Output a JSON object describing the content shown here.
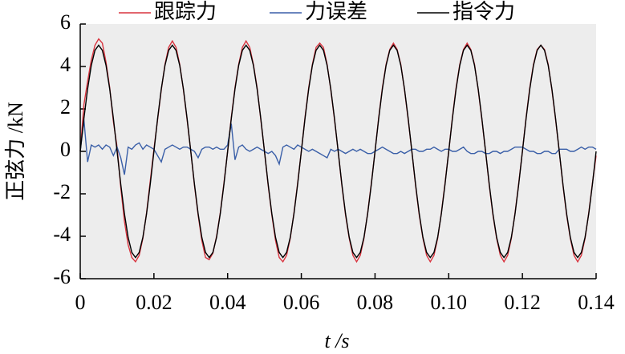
{
  "chart_data": {
    "type": "line",
    "xlabel": "t /s",
    "ylabel": "正弦力 /kN",
    "x": [
      0,
      0.001,
      0.002,
      0.003,
      0.004,
      0.005,
      0.006,
      0.007,
      0.008,
      0.009,
      0.01,
      0.011,
      0.012,
      0.013,
      0.014,
      0.015,
      0.016,
      0.017,
      0.018,
      0.019,
      0.02,
      0.021,
      0.022,
      0.023,
      0.024,
      0.025,
      0.026,
      0.027,
      0.028,
      0.029,
      0.03,
      0.031,
      0.032,
      0.033,
      0.034,
      0.035,
      0.036,
      0.037,
      0.038,
      0.039,
      0.04,
      0.041,
      0.042,
      0.043,
      0.044,
      0.045,
      0.046,
      0.047,
      0.048,
      0.049,
      0.05,
      0.051,
      0.052,
      0.053,
      0.054,
      0.055,
      0.056,
      0.057,
      0.058,
      0.059,
      0.06,
      0.061,
      0.062,
      0.063,
      0.064,
      0.065,
      0.066,
      0.067,
      0.068,
      0.069,
      0.07,
      0.071,
      0.072,
      0.073,
      0.074,
      0.075,
      0.076,
      0.077,
      0.078,
      0.079,
      0.08,
      0.081,
      0.082,
      0.083,
      0.084,
      0.085,
      0.086,
      0.087,
      0.088,
      0.089,
      0.09,
      0.091,
      0.092,
      0.093,
      0.094,
      0.095,
      0.096,
      0.097,
      0.098,
      0.099,
      0.1,
      0.101,
      0.102,
      0.103,
      0.104,
      0.105,
      0.106,
      0.107,
      0.108,
      0.109,
      0.11,
      0.111,
      0.112,
      0.113,
      0.114,
      0.115,
      0.116,
      0.117,
      0.118,
      0.119,
      0.12,
      0.121,
      0.122,
      0.123,
      0.124,
      0.125,
      0.126,
      0.127,
      0.128,
      0.129,
      0.13,
      0.131,
      0.132,
      0.133,
      0.134,
      0.135,
      0.136,
      0.137,
      0.138,
      0.139,
      0.14
    ],
    "series": [
      {
        "name": "跟踪力",
        "color": "#d9343f",
        "values": [
          0,
          2.2,
          3.3,
          4.3,
          5.0,
          5.3,
          5.1,
          4.2,
          3.0,
          1.4,
          0.2,
          -1.7,
          -3.3,
          -4.4,
          -5.0,
          -5.2,
          -4.9,
          -4.1,
          -2.9,
          -1.4,
          0.1,
          1.5,
          2.9,
          4.1,
          4.9,
          5.2,
          4.9,
          4.1,
          2.9,
          1.5,
          0,
          -1.6,
          -3.0,
          -4.2,
          -5.0,
          -5.1,
          -4.8,
          -4.0,
          -2.9,
          -1.5,
          0,
          1.6,
          3.0,
          4.1,
          4.9,
          5.2,
          4.9,
          4.1,
          3.0,
          1.5,
          0,
          -1.6,
          -3.0,
          -4.2,
          -5.0,
          -5.2,
          -4.9,
          -4.1,
          -2.9,
          -1.5,
          0,
          1.6,
          3.0,
          4.1,
          4.9,
          5.1,
          4.9,
          4.1,
          2.9,
          1.5,
          0,
          -1.6,
          -3.0,
          -4.1,
          -4.9,
          -5.2,
          -4.9,
          -4.1,
          -2.9,
          -1.5,
          0,
          1.6,
          3.0,
          4.1,
          4.8,
          5.1,
          4.8,
          4.1,
          2.9,
          1.5,
          0,
          -1.6,
          -3.0,
          -4.1,
          -4.9,
          -5.2,
          -4.9,
          -4.1,
          -2.9,
          -1.5,
          0,
          1.6,
          3.0,
          4.1,
          4.8,
          5.1,
          4.8,
          4.1,
          2.9,
          1.5,
          0,
          -1.6,
          -3.0,
          -4.1,
          -4.9,
          -5.2,
          -4.9,
          -4.1,
          -2.9,
          -1.5,
          0,
          1.6,
          3.0,
          4.1,
          4.8,
          5.0,
          4.8,
          4.1,
          2.9,
          1.5,
          0,
          -1.6,
          -3.0,
          -4.1,
          -4.9,
          -5.2,
          -4.9,
          -4.1,
          -2.9,
          -1.5,
          -0.2
        ]
      },
      {
        "name": "力误差",
        "color": "#3a5fa8",
        "values": [
          0,
          1.5,
          -0.5,
          0.3,
          0.2,
          0.3,
          0.1,
          0.3,
          0.2,
          -0.2,
          0.2,
          -0.3,
          -1.1,
          0.2,
          0.1,
          0.3,
          0.4,
          0.1,
          0.3,
          0.2,
          0.1,
          -0.2,
          -0.5,
          0.1,
          0.2,
          0.3,
          0.2,
          0.1,
          0.2,
          0.2,
          0.1,
          0.0,
          -0.3,
          0.1,
          0.2,
          0.2,
          0.1,
          0.2,
          0.1,
          0.1,
          0.3,
          1.3,
          -0.4,
          0.2,
          0.3,
          0.1,
          0.0,
          0.1,
          0.2,
          0.1,
          0.0,
          -0.1,
          0.0,
          -0.2,
          -0.6,
          0.2,
          0.3,
          0.2,
          0.1,
          0.3,
          0.2,
          0.1,
          0.0,
          0.1,
          0.0,
          -0.1,
          -0.2,
          -0.3,
          0.1,
          0.0,
          0.1,
          0.0,
          -0.1,
          0.0,
          0.1,
          0.0,
          0.1,
          0.0,
          -0.1,
          -0.1,
          0.0,
          0.1,
          0.2,
          0.1,
          0.0,
          -0.1,
          -0.1,
          0.0,
          -0.1,
          0.0,
          0.1,
          0.1,
          0.0,
          0.0,
          0.1,
          0.1,
          0.2,
          0.1,
          0.0,
          0.1,
          0.1,
          0.0,
          0.0,
          0.1,
          0.2,
          0.0,
          -0.1,
          -0.1,
          0.0,
          0.0,
          -0.1,
          -0.1,
          0.0,
          0.0,
          -0.1,
          0.0,
          0.0,
          0.1,
          0.2,
          0.2,
          0.2,
          0.1,
          0.0,
          0.0,
          -0.1,
          -0.1,
          0.0,
          0.0,
          -0.1,
          -0.1,
          0.1,
          0.1,
          0.1,
          0.0,
          0.0,
          0.1,
          0.2,
          0.1,
          0.2,
          0.2,
          0.1
        ]
      },
      {
        "name": "指令力",
        "color": "#000000",
        "values": [
          0,
          1.55,
          2.94,
          4.05,
          4.76,
          5,
          4.76,
          4.05,
          2.94,
          1.55,
          0,
          -1.55,
          -2.94,
          -4.05,
          -4.76,
          -5,
          -4.76,
          -4.05,
          -2.94,
          -1.55,
          0,
          1.55,
          2.94,
          4.05,
          4.76,
          5,
          4.76,
          4.05,
          2.94,
          1.55,
          0,
          -1.55,
          -2.94,
          -4.05,
          -4.76,
          -5,
          -4.76,
          -4.05,
          -2.94,
          -1.55,
          0,
          1.55,
          2.94,
          4.05,
          4.76,
          5,
          4.76,
          4.05,
          2.94,
          1.55,
          0,
          -1.55,
          -2.94,
          -4.05,
          -4.76,
          -5,
          -4.76,
          -4.05,
          -2.94,
          -1.55,
          0,
          1.55,
          2.94,
          4.05,
          4.76,
          5,
          4.76,
          4.05,
          2.94,
          1.55,
          0,
          -1.55,
          -2.94,
          -4.05,
          -4.76,
          -5,
          -4.76,
          -4.05,
          -2.94,
          -1.55,
          0,
          1.55,
          2.94,
          4.05,
          4.76,
          5,
          4.76,
          4.05,
          2.94,
          1.55,
          0,
          -1.55,
          -2.94,
          -4.05,
          -4.76,
          -5,
          -4.76,
          -4.05,
          -2.94,
          -1.55,
          0,
          1.55,
          2.94,
          4.05,
          4.76,
          5,
          4.76,
          4.05,
          2.94,
          1.55,
          0,
          -1.55,
          -2.94,
          -4.05,
          -4.76,
          -5,
          -4.76,
          -4.05,
          -2.94,
          -1.55,
          0,
          1.55,
          2.94,
          4.05,
          4.76,
          5,
          4.76,
          4.05,
          2.94,
          1.55,
          0,
          -1.55,
          -2.94,
          -4.05,
          -4.76,
          -5,
          -4.76,
          -4.05,
          -2.94,
          -1.55,
          0
        ]
      }
    ],
    "xlim": [
      0,
      0.14
    ],
    "xticks": [
      0,
      0.02,
      0.04,
      0.06,
      0.08,
      {
        "value": 0.1,
        "label": "0.10"
      },
      0.12,
      0.14
    ],
    "ylim": [
      -6,
      6
    ],
    "yticks": [
      -6,
      -4,
      -2,
      0,
      2,
      4,
      6
    ],
    "legend": "top",
    "grid": false
  }
}
